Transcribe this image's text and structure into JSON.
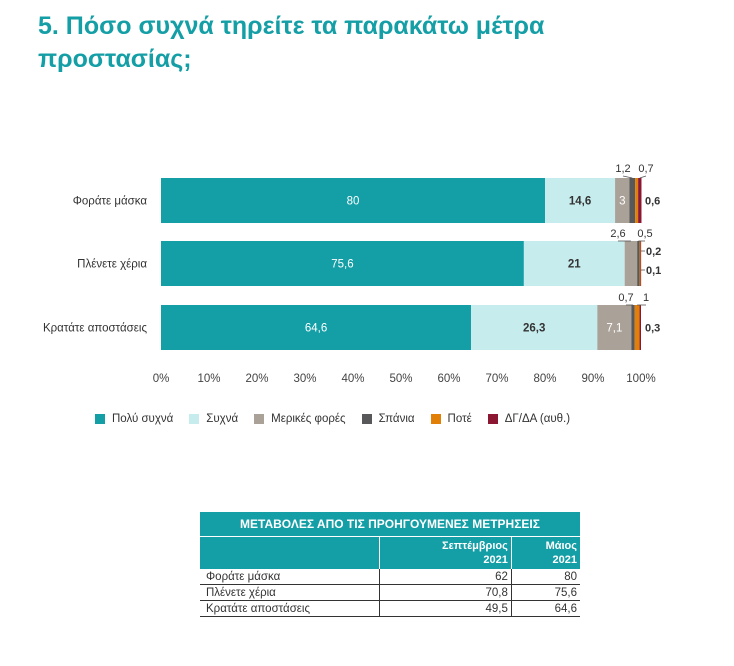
{
  "title": "5. Πόσο συχνά τηρείτε τα παρακάτω μέτρα προστασίας;",
  "chart_data": {
    "type": "bar",
    "orientation": "horizontal",
    "stacked": true,
    "categories": [
      "Φοράτε μάσκα",
      "Πλένετε χέρια",
      "Κρατάτε αποστάσεις"
    ],
    "series": [
      {
        "name": "Πολύ συχνά",
        "color": "#149ea6",
        "values": [
          80,
          75.6,
          64.6
        ],
        "labels": [
          "80",
          "75,6",
          "64,6"
        ]
      },
      {
        "name": "Συχνά",
        "color": "#c7ecee",
        "values": [
          14.6,
          21,
          26.3
        ],
        "labels": [
          "14,6",
          "21",
          "26,3"
        ]
      },
      {
        "name": "Μερικές φορές",
        "color": "#aaa198",
        "values": [
          3,
          2.6,
          7.1
        ],
        "labels": [
          "3",
          "2,6",
          "7,1"
        ]
      },
      {
        "name": "Σπάνια",
        "color": "#58585a",
        "values": [
          1.2,
          0.5,
          0.7
        ],
        "labels": [
          "1,2",
          "0,5",
          "0,7"
        ]
      },
      {
        "name": "Ποτέ",
        "color": "#e17f07",
        "values": [
          0.6,
          0.2,
          1
        ],
        "labels": [
          "0,6",
          "0,2",
          "1"
        ]
      },
      {
        "name": "ΔΓ/ΔΑ (αυθ.)",
        "color": "#8c1733",
        "values": [
          0.7,
          0.1,
          0.3
        ],
        "labels": [
          "0,7",
          "0,1",
          "0,3"
        ]
      }
    ],
    "xlim": [
      0,
      100
    ],
    "xticks": [
      "0%",
      "10%",
      "20%",
      "30%",
      "40%",
      "50%",
      "60%",
      "70%",
      "80%",
      "90%",
      "100%"
    ],
    "legend_position": "bottom"
  },
  "table": {
    "title": "ΜΕΤΑΒΟΛΕΣ ΑΠΟ ΤΙΣ ΠΡΟΗΓΟΥΜΕΝΕΣ ΜΕΤΡΗΣΕΙΣ",
    "col1": {
      "line1": "Σεπτέμβριος",
      "line2": "2021"
    },
    "col2": {
      "line1": "Μάιος",
      "line2": "2021"
    },
    "rows": [
      {
        "label": "Φοράτε μάσκα",
        "sep": "62",
        "may": "80"
      },
      {
        "label": "Πλένετε χέρια",
        "sep": "70,8",
        "may": "75,6"
      },
      {
        "label": "Κρατάτε αποστάσεις",
        "sep": "49,5",
        "may": "64,6"
      }
    ]
  }
}
